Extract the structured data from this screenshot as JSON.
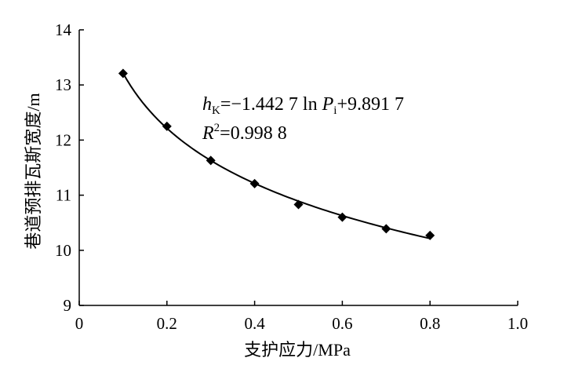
{
  "chart_data": {
    "type": "scatter",
    "xlabel": "支护应力/MPa",
    "ylabel": "巷道预排瓦斯宽度/m",
    "xlim": [
      0,
      1.0
    ],
    "ylim": [
      9,
      14
    ],
    "x_ticks": [
      "0",
      "0.2",
      "0.4",
      "0.6",
      "0.8",
      "1.0"
    ],
    "y_ticks": [
      "9",
      "10",
      "11",
      "12",
      "13",
      "14"
    ],
    "x_tick_values": [
      0,
      0.2,
      0.4,
      0.6,
      0.8,
      1.0
    ],
    "y_tick_values": [
      9,
      10,
      11,
      12,
      13,
      14
    ],
    "grid": false,
    "legend": "none",
    "series": [
      {
        "marker": "diamond",
        "x": [
          0.1,
          0.2,
          0.3,
          0.4,
          0.5,
          0.6,
          0.7,
          0.8
        ],
        "y": [
          13.21,
          12.25,
          11.63,
          11.21,
          10.83,
          10.6,
          10.39,
          10.27
        ]
      }
    ],
    "trendline": {
      "type": "logarithmic",
      "a": -1.4427,
      "b": 9.8917
    },
    "equation": {
      "h": "h",
      "sub_k": "K",
      "eq_part1": "=−1.442 7 ln ",
      "p": "P",
      "sub_i": "i",
      "eq_part2": "+9.891 7",
      "r": "R",
      "sup2": "2",
      "r_value": "=0.998 8"
    },
    "colors": {
      "marker": "#000000",
      "line": "#000000",
      "axis": "#000000"
    }
  }
}
